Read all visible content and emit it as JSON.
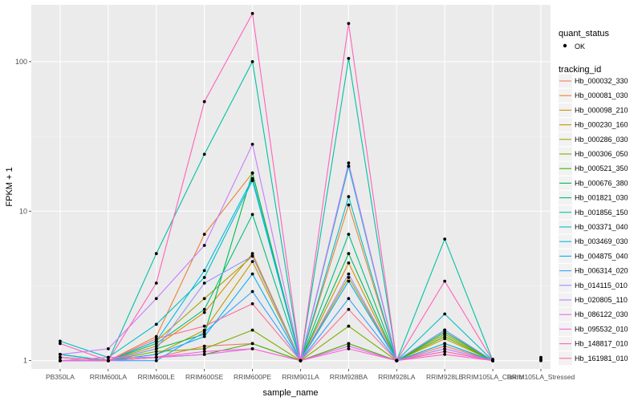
{
  "chart_data": {
    "type": "line",
    "xlabel": "sample_name",
    "ylabel": "FPKM + 1",
    "y_scale": "log",
    "ylim": [
      0.88,
      240
    ],
    "y_ticks": [
      1,
      10,
      100
    ],
    "y_tick_labels": [
      "1",
      "10",
      "100"
    ],
    "grid": true,
    "legend_position": "right",
    "categories": [
      "PB350LA",
      "RRIM600LA",
      "RRIM600LE",
      "RRIM600SE",
      "RRIM600PE",
      "RRIM901LA",
      "RRIM928BA",
      "RRIM928LA",
      "RRIM928LE",
      "RRIM105LA_Control",
      "RRIM105LA_Stressed"
    ],
    "points_legend": {
      "title": "quant_status",
      "label": "OK"
    },
    "series_legend_title": "tracking_id",
    "series": [
      {
        "name": "Hb_000032_330",
        "color": "#F8766D",
        "values": [
          1.0,
          1.0,
          1.05,
          1.25,
          1.3,
          1.0,
          1.3,
          1.0,
          1.25,
          1.0,
          null
        ]
      },
      {
        "name": "Hb_000081_030",
        "color": "#EA8331",
        "values": [
          1.05,
          1.0,
          1.45,
          7.0,
          18.0,
          1.0,
          11.0,
          1.0,
          1.5,
          1.0,
          null
        ]
      },
      {
        "name": "Hb_000098_210",
        "color": "#D89000",
        "values": [
          1.1,
          1.0,
          1.25,
          2.1,
          5.2,
          1.0,
          4.5,
          1.0,
          1.6,
          1.0,
          null
        ]
      },
      {
        "name": "Hb_000230_160",
        "color": "#C09B00",
        "values": [
          1.0,
          1.0,
          1.1,
          1.6,
          4.6,
          1.0,
          3.6,
          1.0,
          1.4,
          1.0,
          null
        ]
      },
      {
        "name": "Hb_000286_030",
        "color": "#A3A500",
        "values": [
          1.05,
          1.0,
          1.35,
          2.6,
          5.0,
          1.0,
          20.0,
          1.0,
          1.5,
          1.0,
          null
        ]
      },
      {
        "name": "Hb_000306_050",
        "color": "#7CAE00",
        "values": [
          1.0,
          1.0,
          1.15,
          1.2,
          1.6,
          1.0,
          1.7,
          1.0,
          1.3,
          1.0,
          null
        ]
      },
      {
        "name": "Hb_000521_350",
        "color": "#39B600",
        "values": [
          1.0,
          1.0,
          1.05,
          1.1,
          1.3,
          1.0,
          1.3,
          1.0,
          1.45,
          1.0,
          null
        ]
      },
      {
        "name": "Hb_000676_380",
        "color": "#00BB4E",
        "values": [
          1.1,
          1.0,
          1.2,
          1.5,
          18.0,
          1.0,
          5.2,
          1.0,
          1.55,
          1.0,
          null
        ]
      },
      {
        "name": "Hb_001821_030",
        "color": "#00BF7D",
        "values": [
          1.0,
          1.0,
          1.3,
          2.2,
          9.5,
          1.0,
          7.0,
          1.0,
          1.6,
          1.0,
          null
        ]
      },
      {
        "name": "Hb_001856_150",
        "color": "#00C1A3",
        "values": [
          1.05,
          1.0,
          5.2,
          24.0,
          100.0,
          1.0,
          105.0,
          1.0,
          6.5,
          1.0,
          null
        ]
      },
      {
        "name": "Hb_003371_040",
        "color": "#00BFC4",
        "values": [
          1.35,
          1.05,
          1.75,
          3.6,
          16.0,
          1.0,
          12.5,
          1.0,
          2.05,
          1.0,
          null
        ]
      },
      {
        "name": "Hb_003469_030",
        "color": "#00BAE0",
        "values": [
          1.1,
          1.0,
          1.35,
          4.0,
          16.5,
          1.0,
          20.0,
          1.0,
          1.6,
          1.0,
          null
        ]
      },
      {
        "name": "Hb_004875_040",
        "color": "#00B0F6",
        "values": [
          1.05,
          1.0,
          1.1,
          1.45,
          3.8,
          1.0,
          3.4,
          1.0,
          1.3,
          1.0,
          null
        ]
      },
      {
        "name": "Hb_006314_020",
        "color": "#35A2FF",
        "values": [
          1.0,
          1.0,
          1.0,
          1.55,
          2.9,
          1.0,
          2.6,
          1.0,
          1.2,
          1.0,
          null
        ]
      },
      {
        "name": "Hb_014115_010",
        "color": "#9590FF",
        "values": [
          1.0,
          1.0,
          1.2,
          3.3,
          5.0,
          1.0,
          3.8,
          1.0,
          1.6,
          1.0,
          null
        ]
      },
      {
        "name": "Hb_020805_110",
        "color": "#C77CFF",
        "values": [
          1.1,
          1.2,
          2.6,
          5.9,
          28.0,
          1.0,
          21.0,
          1.0,
          1.2,
          1.0,
          null
        ]
      },
      {
        "name": "Hb_086122_030",
        "color": "#E76BF3",
        "values": [
          1.0,
          1.05,
          1.05,
          1.1,
          1.2,
          1.0,
          1.25,
          1.0,
          1.15,
          1.0,
          null
        ]
      },
      {
        "name": "Hb_095532_010",
        "color": "#FA62DB",
        "values": [
          1.0,
          1.0,
          1.05,
          1.15,
          1.2,
          1.0,
          1.2,
          1.0,
          1.1,
          1.0,
          null
        ]
      },
      {
        "name": "Hb_148817_010",
        "color": "#FF62BC",
        "values": [
          1.3,
          1.0,
          3.3,
          54.0,
          210.0,
          1.0,
          180.0,
          1.0,
          3.4,
          1.0,
          null
        ]
      },
      {
        "name": "Hb_161981_010",
        "color": "#FF6C91",
        "values": [
          1.05,
          1.0,
          1.4,
          1.7,
          2.4,
          1.0,
          2.2,
          1.0,
          1.15,
          1.0,
          null
        ]
      }
    ],
    "extra_points": [
      {
        "category": "RRIM105LA_Control",
        "value": 1.0
      },
      {
        "category": "RRIM105LA_Control",
        "value": 1.02
      },
      {
        "category": "RRIM105LA_Stressed",
        "value": 1.0
      },
      {
        "category": "RRIM105LA_Stressed",
        "value": 1.05
      },
      {
        "category": "RRIM105LA_Stressed",
        "value": 1.02
      }
    ]
  }
}
